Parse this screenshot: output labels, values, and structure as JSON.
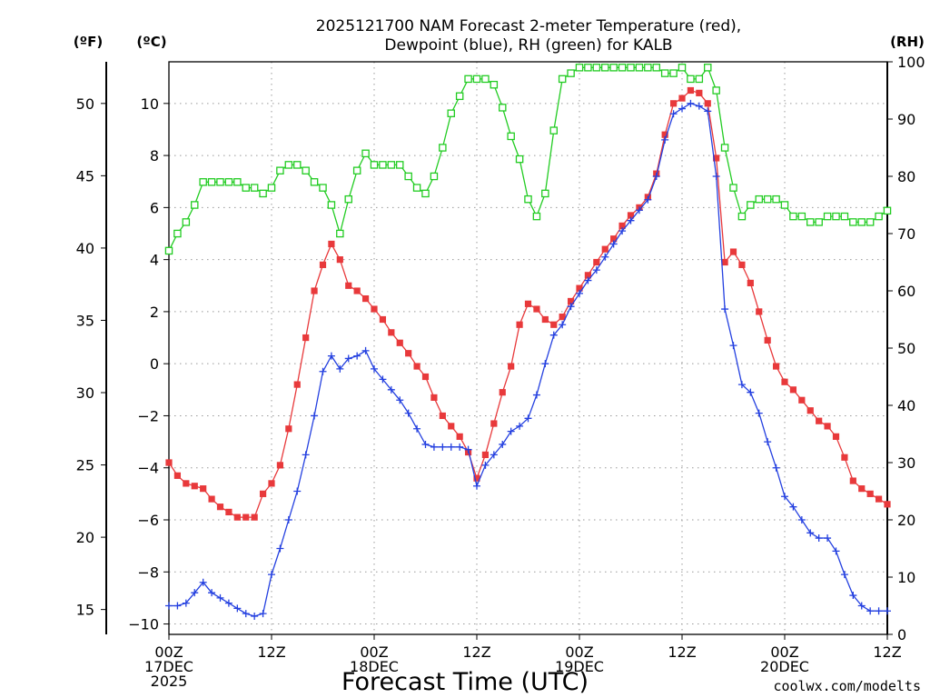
{
  "title_line1": "2025121700 NAM Forecast 2-meter Temperature (red),",
  "title_line2": "Dewpoint (blue), RH (green) for KALB",
  "unit_f": "(ºF)",
  "unit_c": "(ºC)",
  "unit_rh": "(RH)",
  "xlabel": "Forecast Time (UTC)",
  "credit": "coolwx.com/modelts",
  "colors": {
    "temperature": "#e8393b",
    "dewpoint": "#2440e0",
    "rh": "#22cc22",
    "credit": "#cc2233"
  },
  "chart_data": {
    "type": "line",
    "x_unit": "forecast hour from 2025-12-17 00Z",
    "x_range": [
      0,
      84
    ],
    "x_ticks": [
      {
        "hour": 0,
        "line1": "00Z",
        "line2": "17DEC",
        "line3": "2025"
      },
      {
        "hour": 12,
        "line1": "12Z",
        "line2": "",
        "line3": ""
      },
      {
        "hour": 24,
        "line1": "00Z",
        "line2": "18DEC",
        "line3": ""
      },
      {
        "hour": 36,
        "line1": "12Z",
        "line2": "",
        "line3": ""
      },
      {
        "hour": 48,
        "line1": "00Z",
        "line2": "19DEC",
        "line3": ""
      },
      {
        "hour": 60,
        "line1": "12Z",
        "line2": "",
        "line3": ""
      },
      {
        "hour": 72,
        "line1": "00Z",
        "line2": "20DEC",
        "line3": ""
      },
      {
        "hour": 84,
        "line1": "12Z",
        "line2": "",
        "line3": ""
      }
    ],
    "y_celsius": {
      "range": [
        -10.4,
        11.6
      ],
      "ticks": [
        -10,
        -8,
        -6,
        -4,
        -2,
        0,
        2,
        4,
        6,
        8,
        10
      ]
    },
    "y_fahrenheit": {
      "ticks": [
        15,
        20,
        25,
        30,
        35,
        40,
        45,
        50
      ]
    },
    "y_rh": {
      "range": [
        0,
        100
      ],
      "ticks": [
        0,
        10,
        20,
        30,
        40,
        50,
        60,
        70,
        80,
        90,
        100
      ]
    },
    "grid": true,
    "series": [
      {
        "key": "temperature",
        "unit": "C",
        "marker": "filled-square",
        "values": [
          -3.8,
          -4.3,
          -4.6,
          -4.7,
          -4.8,
          -5.2,
          -5.5,
          -5.7,
          -5.9,
          -5.9,
          -5.9,
          -5.0,
          -4.6,
          -3.9,
          -2.5,
          -0.8,
          1.0,
          2.8,
          3.8,
          4.6,
          4.0,
          3.0,
          2.8,
          2.5,
          2.1,
          1.7,
          1.2,
          0.8,
          0.4,
          -0.1,
          -0.5,
          -1.3,
          -2.0,
          -2.4,
          -2.8,
          -3.4,
          -4.4,
          -3.5,
          -2.3,
          -1.1,
          -0.1,
          1.5,
          2.3,
          2.1,
          1.7,
          1.5,
          1.8,
          2.4,
          2.9,
          3.4,
          3.9,
          4.4,
          4.8,
          5.3,
          5.7,
          6.0,
          6.4,
          7.3,
          8.8,
          10.0,
          10.2,
          10.5,
          10.4,
          10.0,
          7.9,
          3.9,
          4.3,
          3.8,
          3.1,
          2.0,
          0.9,
          -0.1,
          -0.7,
          -1.0,
          -1.4,
          -1.8,
          -2.2,
          -2.4,
          -2.8,
          -3.6,
          -4.5,
          -4.8,
          -5.0,
          -5.2,
          -5.4
        ]
      },
      {
        "key": "dewpoint",
        "unit": "C",
        "marker": "plus",
        "values": [
          -9.3,
          -9.3,
          -9.2,
          -8.8,
          -8.4,
          -8.8,
          -9.0,
          -9.2,
          -9.4,
          -9.6,
          -9.7,
          -9.6,
          -8.1,
          -7.1,
          -6.0,
          -4.9,
          -3.5,
          -2.0,
          -0.3,
          0.3,
          -0.2,
          0.2,
          0.3,
          0.5,
          -0.2,
          -0.6,
          -1.0,
          -1.4,
          -1.9,
          -2.5,
          -3.1,
          -3.2,
          -3.2,
          -3.2,
          -3.2,
          -3.3,
          -4.7,
          -3.9,
          -3.5,
          -3.1,
          -2.6,
          -2.4,
          -2.1,
          -1.2,
          0.0,
          1.1,
          1.5,
          2.2,
          2.7,
          3.2,
          3.6,
          4.1,
          4.6,
          5.1,
          5.5,
          5.9,
          6.3,
          7.2,
          8.6,
          9.6,
          9.8,
          10.0,
          9.9,
          9.7,
          7.2,
          2.1,
          0.7,
          -0.8,
          -1.1,
          -1.9,
          -3.0,
          -4.0,
          -5.1,
          -5.5,
          -6.0,
          -6.5,
          -6.7,
          -6.7,
          -7.2,
          -8.1,
          -8.9,
          -9.3,
          -9.5,
          -9.5,
          -9.5
        ]
      },
      {
        "key": "rh",
        "unit": "%",
        "marker": "open-square",
        "values": [
          67,
          70,
          72,
          75,
          79,
          79,
          79,
          79,
          79,
          78,
          78,
          77,
          78,
          81,
          82,
          82,
          81,
          79,
          78,
          75,
          70,
          76,
          81,
          84,
          82,
          82,
          82,
          82,
          80,
          78,
          77,
          80,
          85,
          91,
          94,
          97,
          97,
          97,
          96,
          92,
          87,
          83,
          76,
          73,
          77,
          88,
          97,
          98,
          99,
          99,
          99,
          99,
          99,
          99,
          99,
          99,
          99,
          99,
          98,
          98,
          99,
          97,
          97,
          99,
          95,
          85,
          78,
          73,
          75,
          76,
          76,
          76,
          75,
          73,
          73,
          72,
          72,
          73,
          73,
          73,
          72,
          72,
          72,
          73,
          74
        ]
      }
    ]
  }
}
